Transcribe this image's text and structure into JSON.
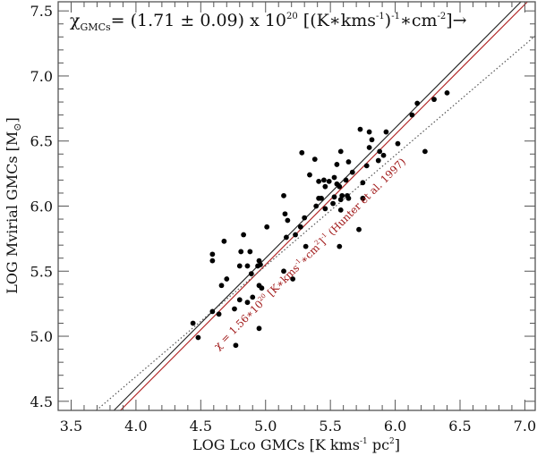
{
  "chart_data": {
    "type": "scatter",
    "title": "",
    "xlabel": "LOG Lco GMCs [K kms⁻¹ pc²]",
    "xlabel_parts": {
      "main": "LOG Lco GMCs [K kms",
      "sup1": "-1",
      "mid": " pc",
      "sup2": "2",
      "end": "]"
    },
    "ylabel": "LOG Mvirial GMCs [M⊙]",
    "ylabel_parts": {
      "main": "LOG Mvirial GMCs [M",
      "sub": "⊙",
      "end": "]"
    },
    "xlim": [
      3.4,
      7.08
    ],
    "ylim": [
      4.43,
      7.57
    ],
    "x_ticks": [
      "3.5",
      "4.0",
      "4.5",
      "5.0",
      "5.5",
      "6.0",
      "6.5",
      "7.0"
    ],
    "y_ticks": [
      "4.5",
      "5.0",
      "5.5",
      "6.0",
      "6.5",
      "7.0",
      "7.5"
    ],
    "minor_tick_step": 0.1,
    "grid": false,
    "points": [
      [
        4.44,
        5.1
      ],
      [
        4.48,
        4.99
      ],
      [
        4.59,
        5.19
      ],
      [
        4.64,
        5.17
      ],
      [
        4.76,
        5.21
      ],
      [
        4.8,
        5.28
      ],
      [
        4.86,
        5.26
      ],
      [
        4.9,
        5.3
      ],
      [
        4.95,
        5.06
      ],
      [
        4.77,
        4.93
      ],
      [
        4.66,
        5.39
      ],
      [
        4.7,
        5.44
      ],
      [
        4.89,
        5.48
      ],
      [
        4.95,
        5.39
      ],
      [
        4.97,
        5.37
      ],
      [
        5.14,
        5.5
      ],
      [
        5.21,
        5.44
      ],
      [
        4.8,
        5.54
      ],
      [
        4.86,
        5.54
      ],
      [
        4.95,
        5.58
      ],
      [
        4.96,
        5.55
      ],
      [
        4.94,
        5.54
      ],
      [
        4.59,
        5.63
      ],
      [
        4.59,
        5.58
      ],
      [
        4.68,
        5.73
      ],
      [
        4.81,
        5.65
      ],
      [
        4.88,
        5.65
      ],
      [
        4.83,
        5.78
      ],
      [
        5.01,
        5.84
      ],
      [
        5.16,
        5.76
      ],
      [
        5.23,
        5.78
      ],
      [
        5.31,
        5.69
      ],
      [
        5.57,
        5.69
      ],
      [
        5.27,
        5.84
      ],
      [
        5.3,
        5.91
      ],
      [
        5.15,
        5.94
      ],
      [
        5.17,
        5.89
      ],
      [
        5.14,
        6.08
      ],
      [
        5.39,
        6.0
      ],
      [
        5.41,
        6.06
      ],
      [
        5.43,
        6.06
      ],
      [
        5.46,
        5.98
      ],
      [
        5.52,
        6.02
      ],
      [
        5.53,
        6.07
      ],
      [
        5.58,
        6.05
      ],
      [
        5.59,
        6.08
      ],
      [
        5.63,
        6.08
      ],
      [
        5.64,
        6.06
      ],
      [
        5.58,
        5.97
      ],
      [
        5.75,
        6.06
      ],
      [
        5.72,
        5.82
      ],
      [
        5.34,
        6.24
      ],
      [
        5.41,
        6.19
      ],
      [
        5.45,
        6.2
      ],
      [
        5.49,
        6.19
      ],
      [
        5.53,
        6.22
      ],
      [
        5.46,
        6.15
      ],
      [
        5.55,
        6.17
      ],
      [
        5.57,
        6.15
      ],
      [
        5.62,
        6.2
      ],
      [
        5.75,
        6.18
      ],
      [
        5.28,
        6.41
      ],
      [
        5.38,
        6.36
      ],
      [
        5.58,
        6.42
      ],
      [
        5.64,
        6.34
      ],
      [
        5.55,
        6.32
      ],
      [
        5.67,
        6.26
      ],
      [
        5.78,
        6.31
      ],
      [
        5.87,
        6.35
      ],
      [
        5.91,
        6.39
      ],
      [
        5.88,
        6.42
      ],
      [
        5.8,
        6.45
      ],
      [
        5.82,
        6.51
      ],
      [
        5.73,
        6.59
      ],
      [
        5.8,
        6.57
      ],
      [
        5.93,
        6.57
      ],
      [
        6.02,
        6.48
      ],
      [
        6.23,
        6.42
      ],
      [
        6.13,
        6.7
      ],
      [
        6.17,
        6.79
      ],
      [
        6.3,
        6.82
      ],
      [
        6.4,
        6.87
      ]
    ],
    "lines": [
      {
        "name": "fit-chi-GMCs",
        "slope": 1.0,
        "intercept": 0.6,
        "color": "#222222",
        "style": "solid"
      },
      {
        "name": "hunter-1997",
        "slope": 1.0,
        "intercept": 0.55,
        "color": "#b02020",
        "style": "solid"
      },
      {
        "name": "dotted-relation",
        "slope": 0.85,
        "intercept": 1.29,
        "color": "#555555",
        "style": "dotted"
      }
    ],
    "annotations": {
      "top": [
        {
          "t": "text",
          "v": "χ"
        },
        {
          "t": "sub",
          "v": "GMCs"
        },
        {
          "t": "text",
          "v": "= (1.71 ± 0.09) x 10"
        },
        {
          "t": "sup",
          "v": "20"
        },
        {
          "t": "text",
          "v": " [(K∗kms"
        },
        {
          "t": "sup",
          "v": "-1"
        },
        {
          "t": "text",
          "v": ")"
        },
        {
          "t": "sup",
          "v": "-1"
        },
        {
          "t": "text",
          "v": "∗cm"
        },
        {
          "t": "sup",
          "v": "-2"
        },
        {
          "t": "text",
          "v": "]→"
        }
      ],
      "hunter": [
        {
          "t": "text",
          "v": "χ = 1.56∗10"
        },
        {
          "t": "sup",
          "v": "20"
        },
        {
          "t": "text",
          "v": " [K∗kms"
        },
        {
          "t": "sup",
          "v": "-1"
        },
        {
          "t": "text",
          "v": "∗cm"
        },
        {
          "t": "sup",
          "v": "2"
        },
        {
          "t": "text",
          "v": "]"
        },
        {
          "t": "sup",
          "v": "-1"
        },
        {
          "t": "text",
          "v": " (Hunter et al. 1997)"
        }
      ]
    },
    "colors": {
      "points": "#000000",
      "frame": "#555555",
      "annotation_red": "#a01818"
    }
  }
}
